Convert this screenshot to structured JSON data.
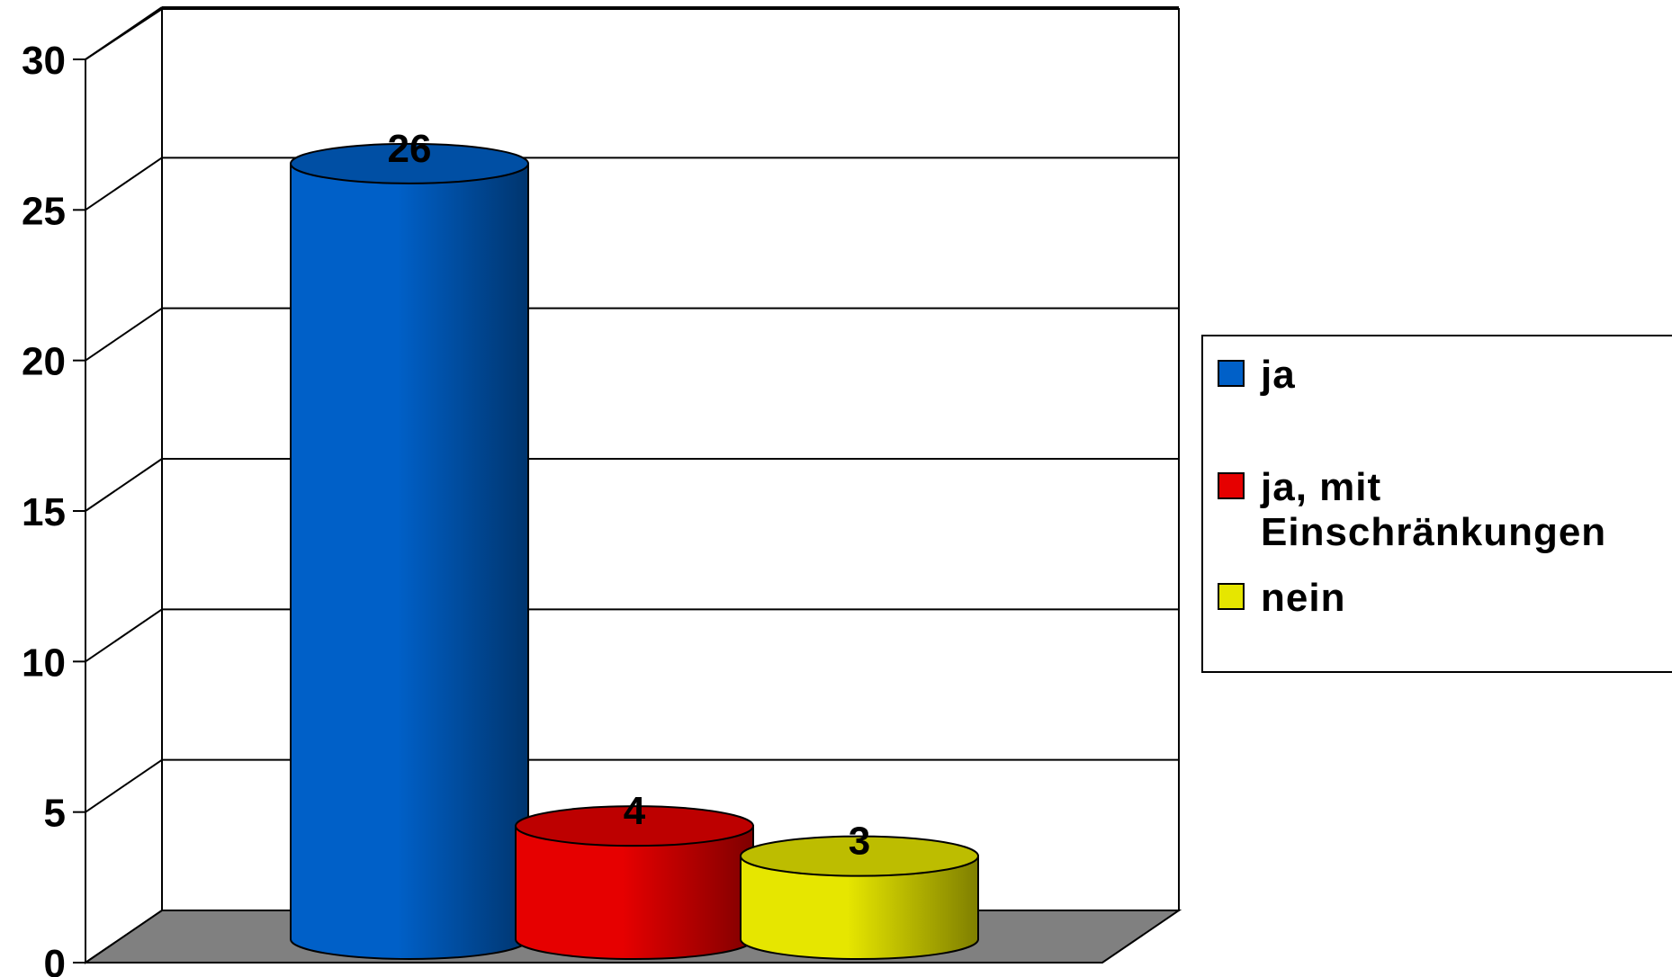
{
  "chart_data": {
    "type": "bar",
    "categories": [
      "ja",
      "ja, mit\nEinschränkungen",
      "nein"
    ],
    "values": [
      26,
      4,
      3
    ],
    "colors": [
      "#0060c8",
      "#e60000",
      "#e6e600"
    ],
    "ylim": [
      0,
      30
    ],
    "yticks": [
      "0",
      "5",
      "10",
      "15",
      "20",
      "25",
      "30"
    ],
    "data_labels": [
      "26",
      "4",
      "3"
    ],
    "title": "",
    "xlabel": "",
    "ylabel": "",
    "grid": true,
    "legend_position": "right",
    "style": "3d-cylinder"
  },
  "legend": {
    "items": [
      {
        "label": "ja",
        "color": "#0060c8"
      },
      {
        "label": "ja, mit\nEinschränkungen",
        "color": "#e60000"
      },
      {
        "label": "nein",
        "color": "#e6e600"
      }
    ]
  }
}
